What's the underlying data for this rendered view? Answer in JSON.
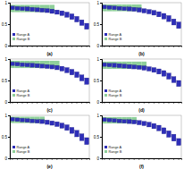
{
  "chart_data": [
    {
      "type": "box",
      "title": "(a)",
      "categories": [
        null,
        null,
        null,
        null,
        null,
        null,
        null,
        null,
        null,
        null,
        null,
        null,
        null,
        null,
        null,
        null
      ],
      "ylim": [
        0,
        1
      ],
      "yticks": [
        0,
        0.5,
        1
      ],
      "legend": "lower left",
      "series": [
        {
          "name": "Range A",
          "color": "#2e2eb8",
          "values": [
            [
              0.84,
              0.92
            ],
            [
              0.83,
              0.91
            ],
            [
              0.82,
              0.9
            ],
            [
              0.81,
              0.9
            ],
            [
              0.8,
              0.89
            ],
            [
              0.79,
              0.88
            ],
            [
              0.78,
              0.87
            ],
            [
              0.77,
              0.86
            ],
            [
              0.75,
              0.85
            ],
            [
              0.73,
              0.83
            ],
            [
              0.7,
              0.81
            ],
            [
              0.66,
              0.78
            ],
            [
              0.61,
              0.74
            ],
            [
              0.55,
              0.68
            ],
            [
              0.47,
              0.6
            ],
            [
              0.38,
              0.52
            ]
          ]
        },
        {
          "name": "Range B",
          "color": "#8fcf9a",
          "values": [
            [
              0.78,
              0.95
            ],
            [
              0.78,
              0.95
            ],
            [
              0.78,
              0.95
            ],
            [
              0.78,
              0.95
            ],
            [
              0.78,
              0.95
            ],
            [
              0.78,
              0.95
            ],
            [
              0.78,
              0.95
            ],
            [
              0.78,
              0.95
            ],
            [
              0.78,
              0.95
            ],
            null,
            null,
            null,
            null,
            null,
            null,
            null
          ]
        }
      ]
    },
    {
      "type": "box",
      "title": "(b)",
      "categories": [
        null,
        null,
        null,
        null,
        null,
        null,
        null,
        null,
        null,
        null,
        null,
        null,
        null,
        null,
        null,
        null
      ],
      "ylim": [
        0,
        1
      ],
      "yticks": [
        0,
        0.5,
        1
      ],
      "legend": "lower left",
      "series": [
        {
          "name": "Range A",
          "color": "#2e2eb8",
          "values": [
            [
              0.86,
              0.94
            ],
            [
              0.85,
              0.93
            ],
            [
              0.84,
              0.92
            ],
            [
              0.83,
              0.91
            ],
            [
              0.82,
              0.9
            ],
            [
              0.81,
              0.9
            ],
            [
              0.8,
              0.89
            ],
            [
              0.78,
              0.88
            ],
            [
              0.76,
              0.86
            ],
            [
              0.74,
              0.84
            ],
            [
              0.71,
              0.82
            ],
            [
              0.67,
              0.79
            ],
            [
              0.62,
              0.75
            ],
            [
              0.56,
              0.7
            ],
            [
              0.48,
              0.62
            ],
            [
              0.4,
              0.55
            ]
          ]
        },
        {
          "name": "Range B",
          "color": "#8fcf9a",
          "values": [
            [
              0.8,
              0.96
            ],
            [
              0.8,
              0.96
            ],
            [
              0.8,
              0.96
            ],
            [
              0.8,
              0.96
            ],
            [
              0.8,
              0.96
            ],
            [
              0.8,
              0.96
            ],
            [
              0.8,
              0.96
            ],
            [
              0.8,
              0.96
            ],
            null,
            null,
            null,
            null,
            null,
            null,
            null,
            null
          ]
        }
      ]
    },
    {
      "type": "box",
      "title": "(c)",
      "categories": [
        null,
        null,
        null,
        null,
        null,
        null,
        null,
        null,
        null,
        null,
        null,
        null,
        null,
        null,
        null,
        null
      ],
      "ylim": [
        0,
        1
      ],
      "yticks": [
        0,
        0.5,
        1
      ],
      "legend": "lower left",
      "series": [
        {
          "name": "Range A",
          "color": "#2e2eb8",
          "values": [
            [
              0.85,
              0.93
            ],
            [
              0.84,
              0.92
            ],
            [
              0.83,
              0.91
            ],
            [
              0.82,
              0.9
            ],
            [
              0.81,
              0.9
            ],
            [
              0.8,
              0.89
            ],
            [
              0.79,
              0.88
            ],
            [
              0.78,
              0.87
            ],
            [
              0.77,
              0.86
            ],
            [
              0.75,
              0.85
            ],
            [
              0.72,
              0.83
            ],
            [
              0.68,
              0.8
            ],
            [
              0.63,
              0.76
            ],
            [
              0.57,
              0.7
            ],
            [
              0.49,
              0.63
            ],
            [
              0.41,
              0.56
            ]
          ]
        },
        {
          "name": "Range B",
          "color": "#8fcf9a",
          "values": [
            [
              0.79,
              0.96
            ],
            [
              0.79,
              0.96
            ],
            [
              0.79,
              0.96
            ],
            [
              0.79,
              0.96
            ],
            [
              0.79,
              0.96
            ],
            [
              0.79,
              0.96
            ],
            [
              0.79,
              0.96
            ],
            [
              0.79,
              0.96
            ],
            [
              0.79,
              0.96
            ],
            [
              0.79,
              0.96
            ],
            null,
            null,
            null,
            null,
            null,
            null
          ]
        }
      ]
    },
    {
      "type": "box",
      "title": "(d)",
      "categories": [
        null,
        null,
        null,
        null,
        null,
        null,
        null,
        null,
        null,
        null,
        null,
        null,
        null,
        null,
        null,
        null
      ],
      "ylim": [
        0,
        1
      ],
      "yticks": [
        0,
        0.5,
        1
      ],
      "legend": "lower left",
      "series": [
        {
          "name": "Range A",
          "color": "#2e2eb8",
          "values": [
            [
              0.83,
              0.91
            ],
            [
              0.82,
              0.9
            ],
            [
              0.81,
              0.9
            ],
            [
              0.8,
              0.89
            ],
            [
              0.79,
              0.88
            ],
            [
              0.78,
              0.87
            ],
            [
              0.77,
              0.86
            ],
            [
              0.76,
              0.85
            ],
            [
              0.74,
              0.84
            ],
            [
              0.72,
              0.82
            ],
            [
              0.69,
              0.8
            ],
            [
              0.65,
              0.77
            ],
            [
              0.6,
              0.73
            ],
            [
              0.53,
              0.67
            ],
            [
              0.45,
              0.59
            ],
            [
              0.36,
              0.5
            ]
          ]
        },
        {
          "name": "Range B",
          "color": "#8fcf9a",
          "values": [
            [
              0.77,
              0.94
            ],
            [
              0.77,
              0.94
            ],
            [
              0.77,
              0.94
            ],
            [
              0.77,
              0.94
            ],
            [
              0.77,
              0.94
            ],
            [
              0.77,
              0.94
            ],
            [
              0.77,
              0.94
            ],
            [
              0.77,
              0.94
            ],
            [
              0.77,
              0.94
            ],
            null,
            null,
            null,
            null,
            null,
            null,
            null
          ]
        }
      ]
    },
    {
      "type": "box",
      "title": "(e)",
      "categories": [
        null,
        null,
        null,
        null,
        null,
        null,
        null,
        null,
        null,
        null,
        null,
        null,
        null,
        null,
        null,
        null
      ],
      "ylim": [
        0,
        1
      ],
      "yticks": [
        0,
        0.5,
        1
      ],
      "legend": "lower left",
      "series": [
        {
          "name": "Range A",
          "color": "#2e2eb8",
          "values": [
            [
              0.87,
              0.95
            ],
            [
              0.86,
              0.94
            ],
            [
              0.85,
              0.93
            ],
            [
              0.84,
              0.92
            ],
            [
              0.83,
              0.91
            ],
            [
              0.82,
              0.9
            ],
            [
              0.81,
              0.9
            ],
            [
              0.79,
              0.89
            ],
            [
              0.77,
              0.87
            ],
            [
              0.74,
              0.85
            ],
            [
              0.7,
              0.82
            ],
            [
              0.65,
              0.78
            ],
            [
              0.58,
              0.72
            ],
            [
              0.5,
              0.65
            ],
            [
              0.41,
              0.57
            ],
            [
              0.32,
              0.48
            ]
          ]
        },
        {
          "name": "Range B",
          "color": "#8fcf9a",
          "values": [
            [
              0.82,
              0.97
            ],
            [
              0.82,
              0.97
            ],
            [
              0.82,
              0.97
            ],
            [
              0.82,
              0.97
            ],
            [
              0.82,
              0.97
            ],
            [
              0.82,
              0.97
            ],
            [
              0.82,
              0.97
            ],
            null,
            null,
            null,
            null,
            null,
            null,
            null,
            null,
            null
          ]
        }
      ]
    },
    {
      "type": "box",
      "title": "(f)",
      "categories": [
        null,
        null,
        null,
        null,
        null,
        null,
        null,
        null,
        null,
        null,
        null,
        null,
        null,
        null,
        null,
        null
      ],
      "ylim": [
        0,
        1
      ],
      "yticks": [
        0,
        0.5,
        1
      ],
      "legend": "lower left",
      "series": [
        {
          "name": "Range A",
          "color": "#2e2eb8",
          "values": [
            [
              0.86,
              0.94
            ],
            [
              0.85,
              0.93
            ],
            [
              0.84,
              0.92
            ],
            [
              0.83,
              0.91
            ],
            [
              0.82,
              0.9
            ],
            [
              0.81,
              0.9
            ],
            [
              0.8,
              0.89
            ],
            [
              0.78,
              0.88
            ],
            [
              0.76,
              0.86
            ],
            [
              0.73,
              0.84
            ],
            [
              0.69,
              0.81
            ],
            [
              0.64,
              0.77
            ],
            [
              0.57,
              0.71
            ],
            [
              0.49,
              0.64
            ],
            [
              0.4,
              0.56
            ],
            [
              0.3,
              0.46
            ]
          ]
        },
        {
          "name": "Range B",
          "color": "#8fcf9a",
          "values": [
            [
              0.81,
              0.96
            ],
            [
              0.81,
              0.96
            ],
            [
              0.81,
              0.96
            ],
            [
              0.81,
              0.96
            ],
            [
              0.81,
              0.96
            ],
            [
              0.81,
              0.96
            ],
            [
              0.81,
              0.96
            ],
            null,
            null,
            null,
            null,
            null,
            null,
            null,
            null,
            null
          ]
        }
      ]
    }
  ]
}
